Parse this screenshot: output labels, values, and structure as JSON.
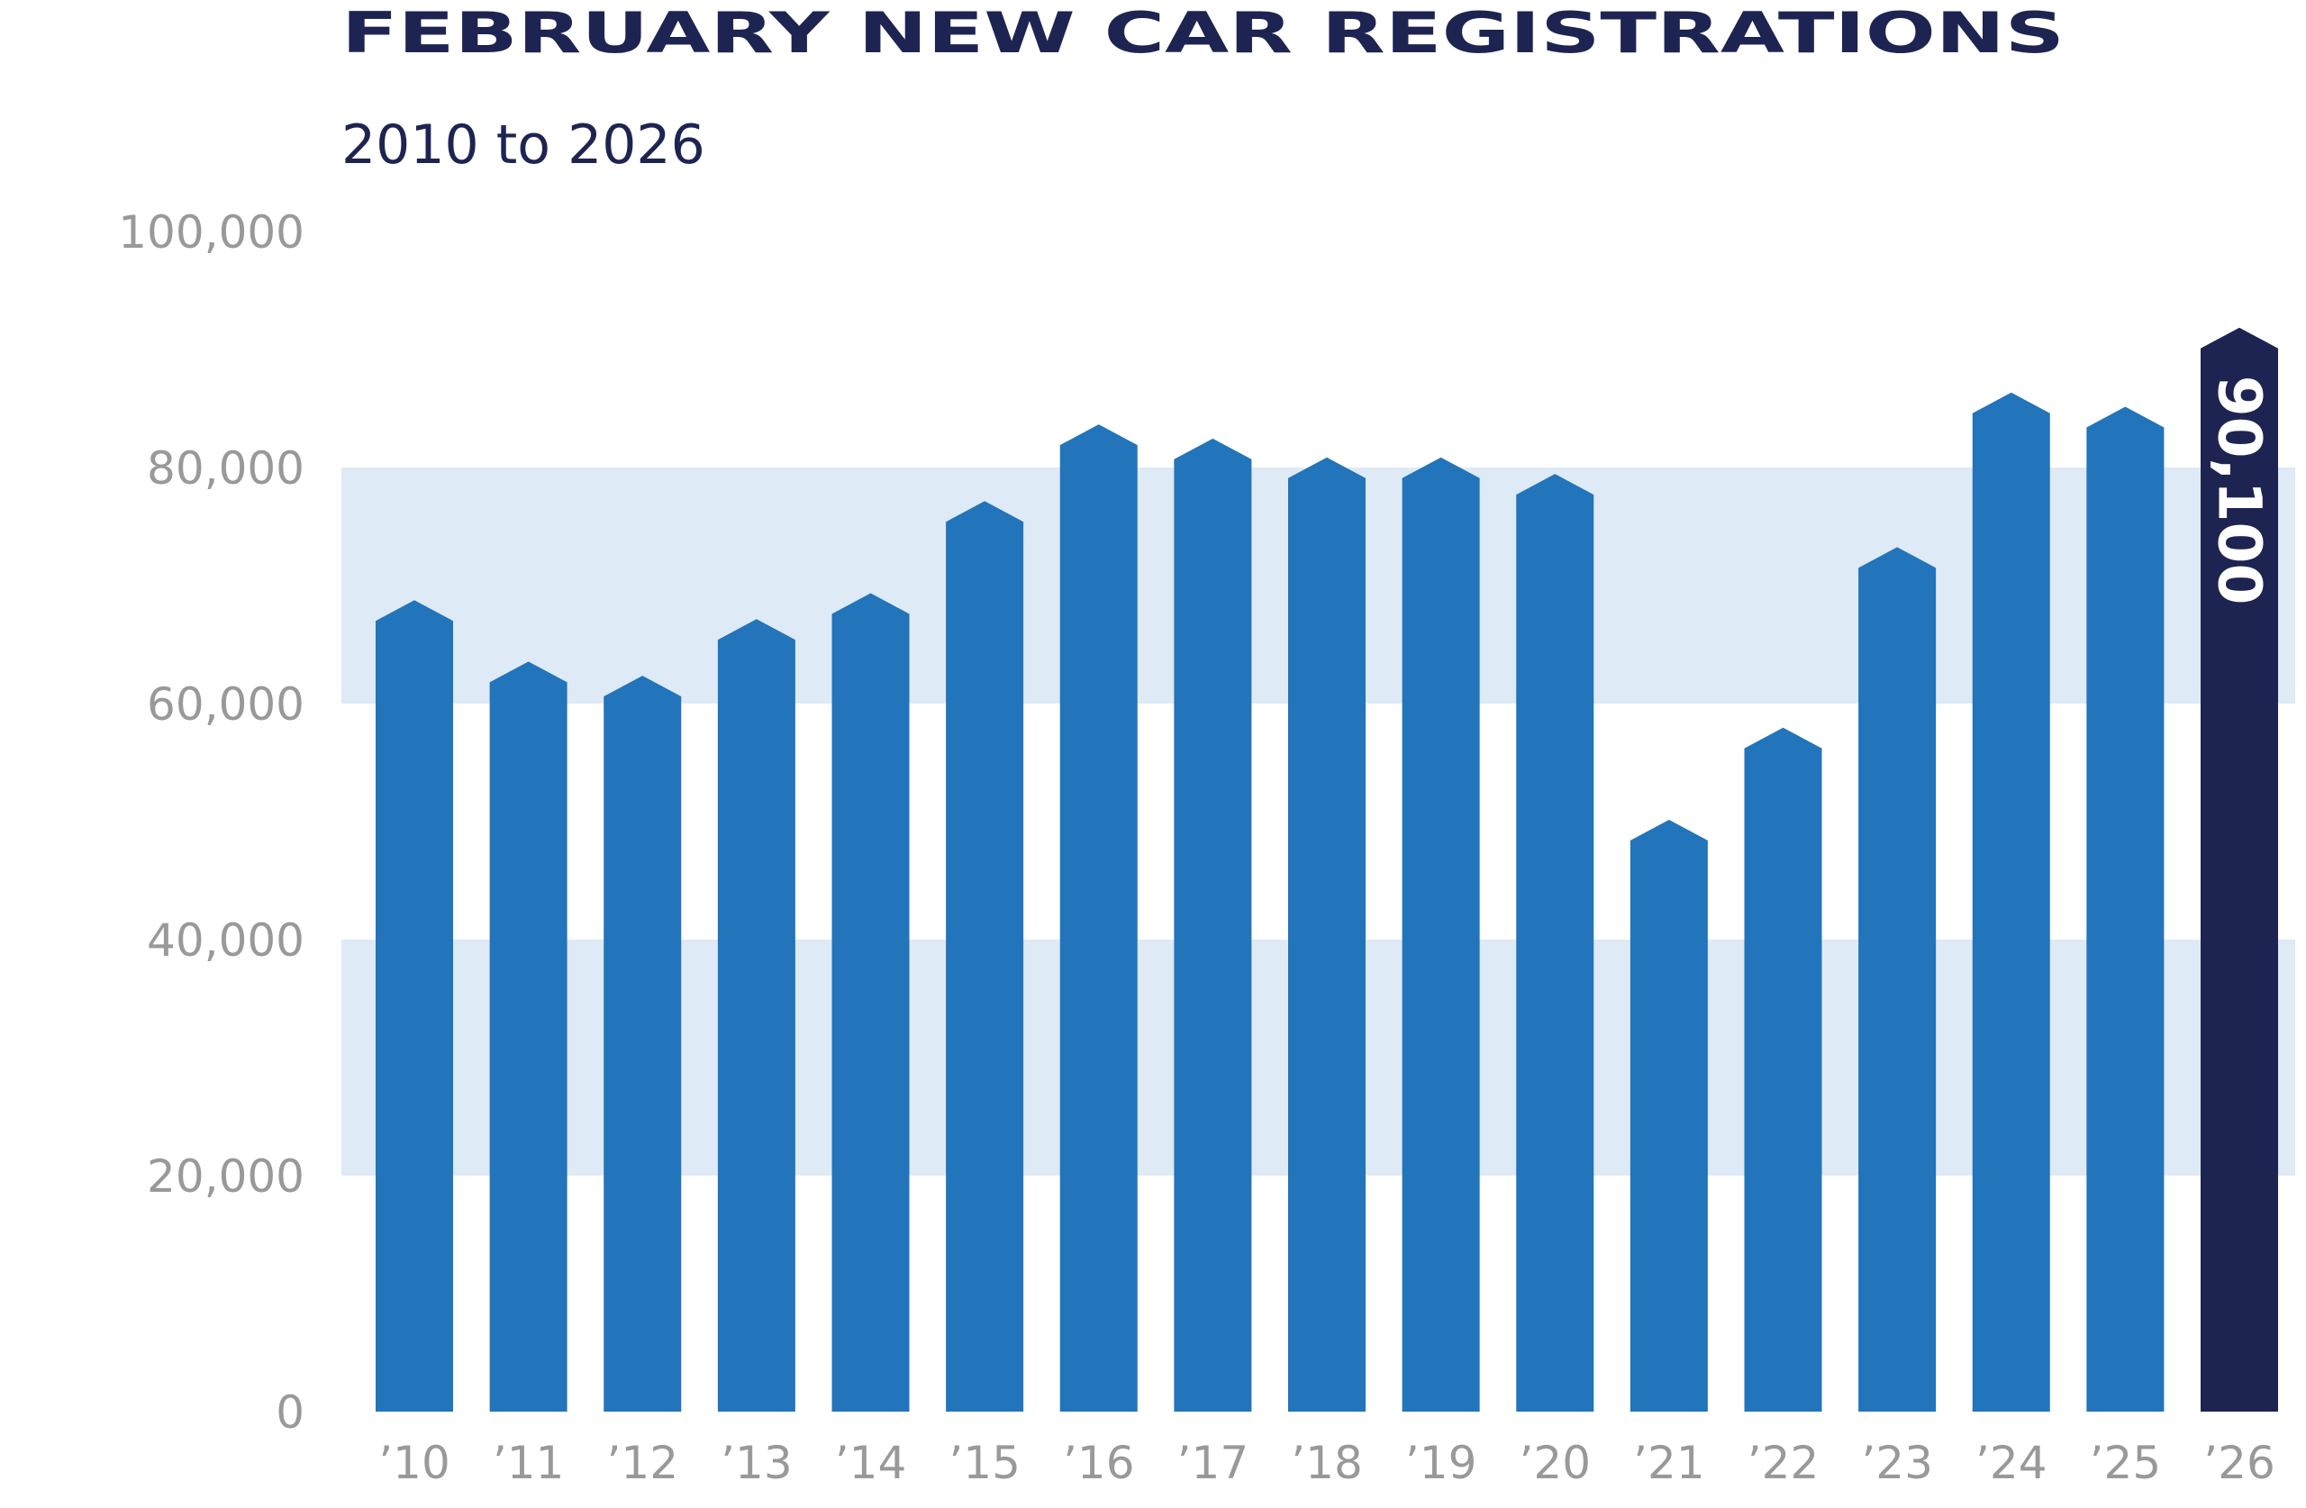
{
  "chart_data": {
    "type": "bar",
    "title": "FEBRUARY NEW CAR REGISTRATIONS",
    "subtitle": "2010 to 2026",
    "categories": [
      "’10",
      "’11",
      "’12",
      "’13",
      "’14",
      "’15",
      "’16",
      "’17",
      "’18",
      "’19",
      "’20",
      "’21",
      "’22",
      "’23",
      "’24",
      "’25",
      "’26"
    ],
    "values": [
      67000,
      61800,
      60600,
      65400,
      67600,
      75400,
      81900,
      80700,
      79100,
      79100,
      77700,
      48400,
      56200,
      71500,
      84600,
      83400,
      90100
    ],
    "value_labels": [
      null,
      null,
      null,
      null,
      null,
      null,
      null,
      null,
      null,
      null,
      null,
      null,
      null,
      null,
      null,
      null,
      "90,100"
    ],
    "colors": [
      "#2274bb",
      "#2274bb",
      "#2274bb",
      "#2274bb",
      "#2274bb",
      "#2274bb",
      "#2274bb",
      "#2274bb",
      "#2274bb",
      "#2274bb",
      "#2274bb",
      "#2274bb",
      "#2274bb",
      "#2274bb",
      "#2274bb",
      "#2274bb",
      "#1e2452"
    ],
    "ylim": [
      0,
      100000
    ],
    "yticks": [
      0,
      {
        "value": 20000,
        "label": "20,000"
      },
      {
        "value": 40000,
        "label": "40,000"
      },
      {
        "value": 60000,
        "label": "60,000"
      },
      {
        "value": 80000,
        "label": "80,000"
      },
      {
        "value": 100000,
        "label": "100,000"
      }
    ],
    "grid": "bands",
    "band_color": "#deeaf6"
  }
}
